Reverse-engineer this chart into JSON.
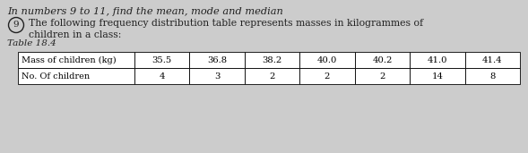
{
  "title_line": "In numbers 9 to 11, find the mean, mode and median",
  "question_number": "9",
  "question_text_line1": "The following frequency distribution table represents masses in kilogrammes of",
  "question_text_line2": "children in a class:",
  "table_label": "Table 18.4",
  "col_header1": "Mass of children (kg)",
  "col_header2": "No. Of children",
  "mass_values": [
    "35.5",
    "36.8",
    "38.2",
    "40.0",
    "40.2",
    "41.0",
    "41.4"
  ],
  "frequency_values": [
    "4",
    "3",
    "2",
    "2",
    "2",
    "14",
    "8"
  ],
  "bg_color": "#cccccc",
  "text_color": "#222222"
}
